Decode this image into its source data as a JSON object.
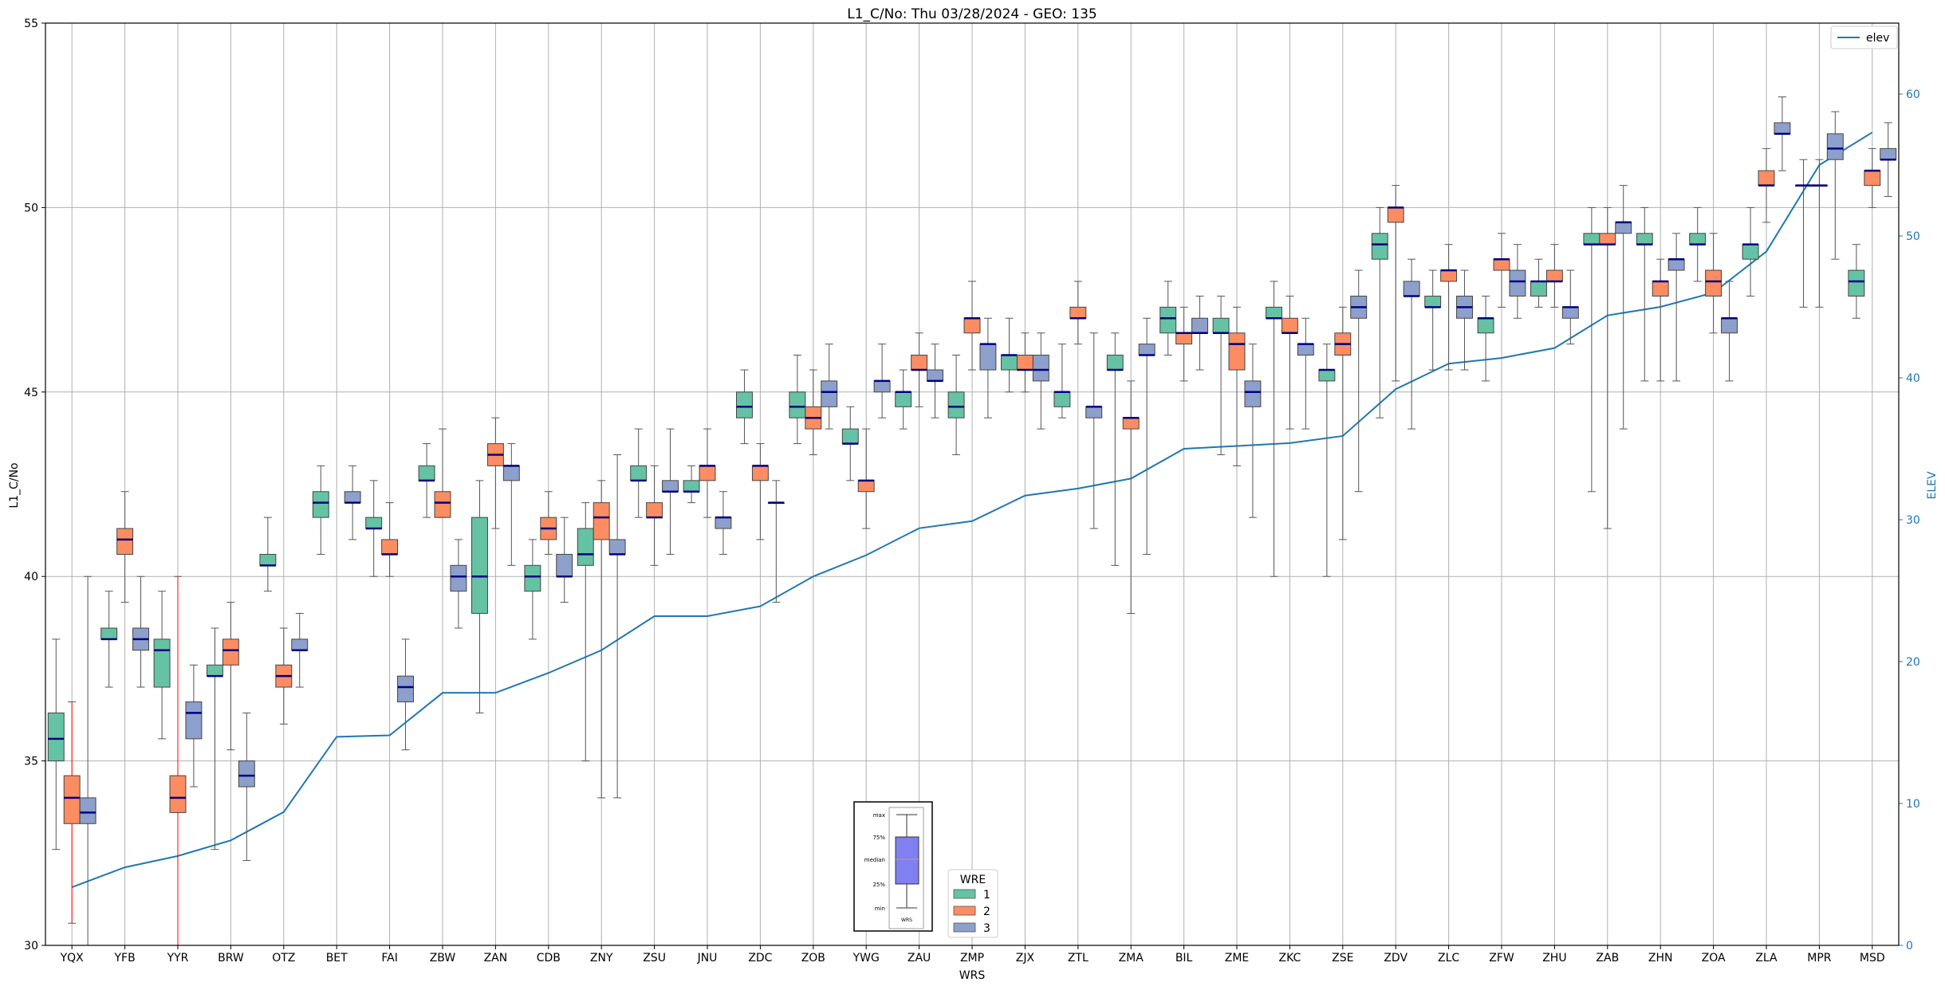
{
  "chart_data": {
    "type": "box",
    "title": "L1_C/No: Thu 03/28/2024 - GEO: 135",
    "xlabel": "WRS",
    "ylabel": "L1_C/No",
    "y2label": "ELEV",
    "ylim": [
      30,
      55
    ],
    "y2lim": [
      0,
      65
    ],
    "yticks": [
      30,
      35,
      40,
      45,
      50,
      55
    ],
    "y2ticks": [
      0,
      10,
      20,
      30,
      40,
      50,
      60
    ],
    "grid": true,
    "categories": [
      "YQX",
      "YFB",
      "YYR",
      "BRW",
      "OTZ",
      "BET",
      "FAI",
      "ZBW",
      "ZAN",
      "CDB",
      "ZNY",
      "ZSU",
      "JNU",
      "ZDC",
      "ZOB",
      "YWG",
      "ZAU",
      "ZMP",
      "ZJX",
      "ZTL",
      "ZMA",
      "BIL",
      "ZME",
      "ZKC",
      "ZSE",
      "ZDV",
      "ZLC",
      "ZFW",
      "ZHU",
      "ZAB",
      "ZHN",
      "ZOA",
      "ZLA",
      "MPR",
      "MSD"
    ],
    "wre_legend": {
      "title": "WRE",
      "entries": [
        "1",
        "2",
        "3"
      ],
      "placement": "bottom-center"
    },
    "series_colors": {
      "1": "#66c2a5",
      "2": "#fc8d62",
      "3": "#8da0cb"
    },
    "median_color": "#000080",
    "highlight_whisker_color": "#ff0000",
    "boxes": [
      {
        "station": "YQX",
        "wre": 1,
        "min": 32.6,
        "q1": 35.0,
        "median": 35.6,
        "q3": 36.3,
        "max": 38.3
      },
      {
        "station": "YQX",
        "wre": 2,
        "min": 30.6,
        "q1": 33.3,
        "median": 34.0,
        "q3": 34.6,
        "max": 36.6,
        "highlight": true
      },
      {
        "station": "YQX",
        "wre": 3,
        "min": 30.0,
        "q1": 33.3,
        "median": 33.6,
        "q3": 34.0,
        "max": 40.0
      },
      {
        "station": "YFB",
        "wre": 1,
        "min": 37.0,
        "q1": 38.3,
        "median": 38.3,
        "q3": 38.6,
        "max": 39.6
      },
      {
        "station": "YFB",
        "wre": 2,
        "min": 39.3,
        "q1": 40.6,
        "median": 41.0,
        "q3": 41.3,
        "max": 42.3
      },
      {
        "station": "YFB",
        "wre": 3,
        "min": 37.0,
        "q1": 38.0,
        "median": 38.3,
        "q3": 38.6,
        "max": 40.0
      },
      {
        "station": "YYR",
        "wre": 1,
        "min": 35.6,
        "q1": 37.0,
        "median": 38.0,
        "q3": 38.3,
        "max": 39.6
      },
      {
        "station": "YYR",
        "wre": 2,
        "min": 30.0,
        "q1": 33.6,
        "median": 34.0,
        "q3": 34.6,
        "max": 40.0,
        "highlight": true
      },
      {
        "station": "YYR",
        "wre": 3,
        "min": 34.3,
        "q1": 35.6,
        "median": 36.3,
        "q3": 36.6,
        "max": 37.6
      },
      {
        "station": "BRW",
        "wre": 1,
        "min": 32.6,
        "q1": 37.3,
        "median": 37.3,
        "q3": 37.6,
        "max": 38.6
      },
      {
        "station": "BRW",
        "wre": 2,
        "min": 35.3,
        "q1": 37.6,
        "median": 38.0,
        "q3": 38.3,
        "max": 39.3
      },
      {
        "station": "BRW",
        "wre": 3,
        "min": 32.3,
        "q1": 34.3,
        "median": 34.6,
        "q3": 35.0,
        "max": 36.3
      },
      {
        "station": "OTZ",
        "wre": 1,
        "min": 39.6,
        "q1": 40.3,
        "median": 40.3,
        "q3": 40.6,
        "max": 41.6
      },
      {
        "station": "OTZ",
        "wre": 2,
        "min": 36.0,
        "q1": 37.0,
        "median": 37.3,
        "q3": 37.6,
        "max": 38.6
      },
      {
        "station": "OTZ",
        "wre": 3,
        "min": 37.0,
        "q1": 38.0,
        "median": 38.0,
        "q3": 38.3,
        "max": 39.0
      },
      {
        "station": "BET",
        "wre": 1,
        "min": 40.6,
        "q1": 41.6,
        "median": 42.0,
        "q3": 42.3,
        "max": 43.0
      },
      {
        "station": "BET",
        "wre": 3,
        "min": 41.0,
        "q1": 42.0,
        "median": 42.0,
        "q3": 42.3,
        "max": 43.0
      },
      {
        "station": "FAI",
        "wre": 1,
        "min": 40.0,
        "q1": 41.3,
        "median": 41.3,
        "q3": 41.6,
        "max": 42.6
      },
      {
        "station": "FAI",
        "wre": 2,
        "min": 40.0,
        "q1": 40.6,
        "median": 40.6,
        "q3": 41.0,
        "max": 42.0
      },
      {
        "station": "FAI",
        "wre": 3,
        "min": 35.3,
        "q1": 36.6,
        "median": 37.0,
        "q3": 37.3,
        "max": 38.3
      },
      {
        "station": "ZBW",
        "wre": 1,
        "min": 41.6,
        "q1": 42.6,
        "median": 42.6,
        "q3": 43.0,
        "max": 43.6
      },
      {
        "station": "ZBW",
        "wre": 2,
        "min": 41.6,
        "q1": 41.6,
        "median": 42.0,
        "q3": 42.3,
        "max": 44.0
      },
      {
        "station": "ZBW",
        "wre": 3,
        "min": 38.6,
        "q1": 39.6,
        "median": 40.0,
        "q3": 40.3,
        "max": 41.0
      },
      {
        "station": "ZAN",
        "wre": 1,
        "min": 36.3,
        "q1": 39.0,
        "median": 40.0,
        "q3": 41.6,
        "max": 42.6
      },
      {
        "station": "ZAN",
        "wre": 2,
        "min": 41.3,
        "q1": 43.0,
        "median": 43.3,
        "q3": 43.6,
        "max": 44.3
      },
      {
        "station": "ZAN",
        "wre": 3,
        "min": 40.3,
        "q1": 42.6,
        "median": 43.0,
        "q3": 43.0,
        "max": 43.6
      },
      {
        "station": "CDB",
        "wre": 1,
        "min": 38.3,
        "q1": 39.6,
        "median": 40.0,
        "q3": 40.3,
        "max": 41.0
      },
      {
        "station": "CDB",
        "wre": 2,
        "min": 40.6,
        "q1": 41.0,
        "median": 41.3,
        "q3": 41.6,
        "max": 42.3
      },
      {
        "station": "CDB",
        "wre": 3,
        "min": 39.3,
        "q1": 40.0,
        "median": 40.0,
        "q3": 40.6,
        "max": 41.6
      },
      {
        "station": "ZNY",
        "wre": 1,
        "min": 35.0,
        "q1": 40.3,
        "median": 40.6,
        "q3": 41.3,
        "max": 42.0
      },
      {
        "station": "ZNY",
        "wre": 2,
        "min": 34.0,
        "q1": 41.0,
        "median": 41.6,
        "q3": 42.0,
        "max": 42.6
      },
      {
        "station": "ZNY",
        "wre": 3,
        "min": 34.0,
        "q1": 40.6,
        "median": 40.6,
        "q3": 41.0,
        "max": 43.3
      },
      {
        "station": "ZSU",
        "wre": 1,
        "min": 41.6,
        "q1": 42.6,
        "median": 42.6,
        "q3": 43.0,
        "max": 44.0
      },
      {
        "station": "ZSU",
        "wre": 2,
        "min": 40.3,
        "q1": 41.6,
        "median": 41.6,
        "q3": 42.0,
        "max": 43.0
      },
      {
        "station": "ZSU",
        "wre": 3,
        "min": 40.6,
        "q1": 42.3,
        "median": 42.3,
        "q3": 42.6,
        "max": 44.0
      },
      {
        "station": "JNU",
        "wre": 1,
        "min": 42.0,
        "q1": 42.3,
        "median": 42.3,
        "q3": 42.6,
        "max": 43.0
      },
      {
        "station": "JNU",
        "wre": 2,
        "min": 41.6,
        "q1": 42.6,
        "median": 43.0,
        "q3": 43.0,
        "max": 44.0
      },
      {
        "station": "JNU",
        "wre": 3,
        "min": 40.6,
        "q1": 41.3,
        "median": 41.6,
        "q3": 41.6,
        "max": 42.3
      },
      {
        "station": "ZDC",
        "wre": 1,
        "min": 43.6,
        "q1": 44.3,
        "median": 44.6,
        "q3": 45.0,
        "max": 45.6
      },
      {
        "station": "ZDC",
        "wre": 2,
        "min": 41.0,
        "q1": 42.6,
        "median": 43.0,
        "q3": 43.0,
        "max": 43.6
      },
      {
        "station": "ZDC",
        "wre": 3,
        "min": 39.3,
        "q1": 42.0,
        "median": 42.0,
        "q3": 42.0,
        "max": 42.6
      },
      {
        "station": "ZOB",
        "wre": 1,
        "min": 43.6,
        "q1": 44.3,
        "median": 44.6,
        "q3": 45.0,
        "max": 46.0
      },
      {
        "station": "ZOB",
        "wre": 2,
        "min": 43.3,
        "q1": 44.0,
        "median": 44.3,
        "q3": 44.6,
        "max": 45.6
      },
      {
        "station": "ZOB",
        "wre": 3,
        "min": 44.0,
        "q1": 44.6,
        "median": 45.0,
        "q3": 45.3,
        "max": 46.3
      },
      {
        "station": "YWG",
        "wre": 1,
        "min": 42.6,
        "q1": 43.6,
        "median": 43.6,
        "q3": 44.0,
        "max": 44.6
      },
      {
        "station": "YWG",
        "wre": 2,
        "min": 41.3,
        "q1": 42.3,
        "median": 42.6,
        "q3": 42.6,
        "max": 44.0
      },
      {
        "station": "YWG",
        "wre": 3,
        "min": 44.3,
        "q1": 45.0,
        "median": 45.3,
        "q3": 45.3,
        "max": 46.3
      },
      {
        "station": "ZAU",
        "wre": 1,
        "min": 44.0,
        "q1": 44.6,
        "median": 45.0,
        "q3": 45.0,
        "max": 45.6
      },
      {
        "station": "ZAU",
        "wre": 2,
        "min": 44.6,
        "q1": 45.6,
        "median": 45.6,
        "q3": 46.0,
        "max": 46.6
      },
      {
        "station": "ZAU",
        "wre": 3,
        "min": 44.3,
        "q1": 45.3,
        "median": 45.3,
        "q3": 45.6,
        "max": 46.3
      },
      {
        "station": "ZMP",
        "wre": 1,
        "min": 43.3,
        "q1": 44.3,
        "median": 44.6,
        "q3": 45.0,
        "max": 46.0
      },
      {
        "station": "ZMP",
        "wre": 2,
        "min": 45.6,
        "q1": 46.6,
        "median": 47.0,
        "q3": 47.0,
        "max": 48.0
      },
      {
        "station": "ZMP",
        "wre": 3,
        "min": 44.3,
        "q1": 45.6,
        "median": 46.3,
        "q3": 46.3,
        "max": 47.0
      },
      {
        "station": "ZJX",
        "wre": 1,
        "min": 45.0,
        "q1": 45.6,
        "median": 46.0,
        "q3": 46.0,
        "max": 47.0
      },
      {
        "station": "ZJX",
        "wre": 2,
        "min": 45.0,
        "q1": 45.6,
        "median": 45.6,
        "q3": 46.0,
        "max": 46.6
      },
      {
        "station": "ZJX",
        "wre": 3,
        "min": 44.0,
        "q1": 45.3,
        "median": 45.6,
        "q3": 46.0,
        "max": 46.6
      },
      {
        "station": "ZTL",
        "wre": 1,
        "min": 44.3,
        "q1": 44.6,
        "median": 45.0,
        "q3": 45.0,
        "max": 46.3
      },
      {
        "station": "ZTL",
        "wre": 2,
        "min": 46.3,
        "q1": 47.0,
        "median": 47.0,
        "q3": 47.3,
        "max": 48.0
      },
      {
        "station": "ZTL",
        "wre": 3,
        "min": 41.3,
        "q1": 44.3,
        "median": 44.6,
        "q3": 44.6,
        "max": 46.6
      },
      {
        "station": "ZMA",
        "wre": 1,
        "min": 40.3,
        "q1": 45.6,
        "median": 45.6,
        "q3": 46.0,
        "max": 46.6
      },
      {
        "station": "ZMA",
        "wre": 2,
        "min": 39.0,
        "q1": 44.0,
        "median": 44.3,
        "q3": 44.3,
        "max": 45.3
      },
      {
        "station": "ZMA",
        "wre": 3,
        "min": 40.6,
        "q1": 46.0,
        "median": 46.0,
        "q3": 46.3,
        "max": 47.0
      },
      {
        "station": "BIL",
        "wre": 1,
        "min": 46.0,
        "q1": 46.6,
        "median": 47.0,
        "q3": 47.3,
        "max": 48.0
      },
      {
        "station": "BIL",
        "wre": 2,
        "min": 45.3,
        "q1": 46.3,
        "median": 46.6,
        "q3": 46.6,
        "max": 47.3
      },
      {
        "station": "BIL",
        "wre": 3,
        "min": 45.6,
        "q1": 46.6,
        "median": 46.6,
        "q3": 47.0,
        "max": 47.6
      },
      {
        "station": "ZME",
        "wre": 1,
        "min": 43.3,
        "q1": 46.6,
        "median": 46.6,
        "q3": 47.0,
        "max": 47.6
      },
      {
        "station": "ZME",
        "wre": 2,
        "min": 43.0,
        "q1": 45.6,
        "median": 46.3,
        "q3": 46.6,
        "max": 47.3
      },
      {
        "station": "ZME",
        "wre": 3,
        "min": 41.6,
        "q1": 44.6,
        "median": 45.0,
        "q3": 45.3,
        "max": 46.3
      },
      {
        "station": "ZKC",
        "wre": 1,
        "min": 40.0,
        "q1": 47.0,
        "median": 47.0,
        "q3": 47.3,
        "max": 48.0
      },
      {
        "station": "ZKC",
        "wre": 2,
        "min": 44.0,
        "q1": 46.6,
        "median": 46.6,
        "q3": 47.0,
        "max": 47.6
      },
      {
        "station": "ZKC",
        "wre": 3,
        "min": 44.0,
        "q1": 46.0,
        "median": 46.3,
        "q3": 46.3,
        "max": 47.0
      },
      {
        "station": "ZSE",
        "wre": 1,
        "min": 40.0,
        "q1": 45.3,
        "median": 45.6,
        "q3": 45.6,
        "max": 46.3
      },
      {
        "station": "ZSE",
        "wre": 2,
        "min": 41.0,
        "q1": 46.0,
        "median": 46.3,
        "q3": 46.6,
        "max": 47.3
      },
      {
        "station": "ZSE",
        "wre": 3,
        "min": 42.3,
        "q1": 47.0,
        "median": 47.3,
        "q3": 47.6,
        "max": 48.3
      },
      {
        "station": "ZDV",
        "wre": 1,
        "min": 44.3,
        "q1": 48.6,
        "median": 49.0,
        "q3": 49.3,
        "max": 50.0
      },
      {
        "station": "ZDV",
        "wre": 2,
        "min": 45.3,
        "q1": 49.6,
        "median": 50.0,
        "q3": 50.0,
        "max": 50.6
      },
      {
        "station": "ZDV",
        "wre": 3,
        "min": 44.0,
        "q1": 47.6,
        "median": 47.6,
        "q3": 48.0,
        "max": 48.6
      },
      {
        "station": "ZLC",
        "wre": 1,
        "min": 45.6,
        "q1": 47.3,
        "median": 47.3,
        "q3": 47.6,
        "max": 48.3
      },
      {
        "station": "ZLC",
        "wre": 2,
        "min": 45.6,
        "q1": 48.0,
        "median": 48.3,
        "q3": 48.3,
        "max": 49.0
      },
      {
        "station": "ZLC",
        "wre": 3,
        "min": 45.6,
        "q1": 47.0,
        "median": 47.3,
        "q3": 47.6,
        "max": 48.3
      },
      {
        "station": "ZFW",
        "wre": 1,
        "min": 45.3,
        "q1": 46.6,
        "median": 47.0,
        "q3": 47.0,
        "max": 47.6
      },
      {
        "station": "ZFW",
        "wre": 2,
        "min": 47.3,
        "q1": 48.3,
        "median": 48.6,
        "q3": 48.6,
        "max": 49.3
      },
      {
        "station": "ZFW",
        "wre": 3,
        "min": 47.0,
        "q1": 47.6,
        "median": 48.0,
        "q3": 48.3,
        "max": 49.0
      },
      {
        "station": "ZHU",
        "wre": 1,
        "min": 47.3,
        "q1": 47.6,
        "median": 48.0,
        "q3": 48.0,
        "max": 48.6
      },
      {
        "station": "ZHU",
        "wre": 2,
        "min": 47.3,
        "q1": 48.0,
        "median": 48.0,
        "q3": 48.3,
        "max": 49.0
      },
      {
        "station": "ZHU",
        "wre": 3,
        "min": 46.3,
        "q1": 47.0,
        "median": 47.3,
        "q3": 47.3,
        "max": 48.3
      },
      {
        "station": "ZAB",
        "wre": 1,
        "min": 42.3,
        "q1": 49.0,
        "median": 49.0,
        "q3": 49.3,
        "max": 50.0
      },
      {
        "station": "ZAB",
        "wre": 2,
        "min": 41.3,
        "q1": 49.0,
        "median": 49.0,
        "q3": 49.3,
        "max": 50.0
      },
      {
        "station": "ZAB",
        "wre": 3,
        "min": 44.0,
        "q1": 49.3,
        "median": 49.6,
        "q3": 49.6,
        "max": 50.6
      },
      {
        "station": "ZHN",
        "wre": 1,
        "min": 45.3,
        "q1": 49.0,
        "median": 49.0,
        "q3": 49.3,
        "max": 50.0
      },
      {
        "station": "ZHN",
        "wre": 2,
        "min": 45.3,
        "q1": 47.6,
        "median": 48.0,
        "q3": 48.0,
        "max": 48.6
      },
      {
        "station": "ZHN",
        "wre": 3,
        "min": 45.3,
        "q1": 48.3,
        "median": 48.6,
        "q3": 48.6,
        "max": 49.3
      },
      {
        "station": "ZOA",
        "wre": 1,
        "min": 48.0,
        "q1": 49.0,
        "median": 49.0,
        "q3": 49.3,
        "max": 50.0
      },
      {
        "station": "ZOA",
        "wre": 2,
        "min": 46.6,
        "q1": 47.6,
        "median": 48.0,
        "q3": 48.3,
        "max": 49.3
      },
      {
        "station": "ZOA",
        "wre": 3,
        "min": 45.3,
        "q1": 46.6,
        "median": 47.0,
        "q3": 47.0,
        "max": 48.0
      },
      {
        "station": "ZLA",
        "wre": 1,
        "min": 47.6,
        "q1": 48.6,
        "median": 49.0,
        "q3": 49.0,
        "max": 50.0
      },
      {
        "station": "ZLA",
        "wre": 2,
        "min": 49.6,
        "q1": 50.6,
        "median": 50.6,
        "q3": 51.0,
        "max": 51.6
      },
      {
        "station": "ZLA",
        "wre": 3,
        "min": 51.0,
        "q1": 52.0,
        "median": 52.0,
        "q3": 52.3,
        "max": 53.0
      },
      {
        "station": "MPR",
        "wre": 1,
        "min": 47.3,
        "q1": 50.6,
        "median": 50.6,
        "q3": 50.6,
        "max": 51.3
      },
      {
        "station": "MPR",
        "wre": 2,
        "min": 47.3,
        "q1": 50.6,
        "median": 50.6,
        "q3": 50.6,
        "max": 51.3
      },
      {
        "station": "MPR",
        "wre": 3,
        "min": 48.6,
        "q1": 51.3,
        "median": 51.6,
        "q3": 52.0,
        "max": 52.6
      },
      {
        "station": "MSD",
        "wre": 1,
        "min": 47.0,
        "q1": 47.6,
        "median": 48.0,
        "q3": 48.3,
        "max": 49.0
      },
      {
        "station": "MSD",
        "wre": 2,
        "min": 50.0,
        "q1": 50.6,
        "median": 51.0,
        "q3": 51.0,
        "max": 51.6
      },
      {
        "station": "MSD",
        "wre": 3,
        "min": 50.3,
        "q1": 51.3,
        "median": 51.3,
        "q3": 51.6,
        "max": 52.3
      }
    ],
    "elev_line": {
      "name": "elev",
      "color": "#1f77b4",
      "legend_placement": "top-right",
      "values": [
        4.1,
        5.5,
        6.3,
        7.4,
        9.4,
        14.7,
        14.8,
        17.8,
        17.8,
        19.2,
        20.8,
        23.2,
        23.2,
        23.9,
        26.0,
        27.5,
        29.4,
        29.9,
        31.7,
        32.2,
        32.9,
        35.0,
        35.2,
        35.4,
        35.9,
        39.2,
        41.0,
        41.4,
        42.1,
        44.4,
        45.0,
        46.0,
        48.9,
        55.0,
        57.3
      ]
    },
    "inset_legend": {
      "labels": [
        "max",
        "75%",
        "median",
        "25%",
        "min"
      ],
      "xlabel": "WRS",
      "box_color": "#8080f0"
    }
  }
}
